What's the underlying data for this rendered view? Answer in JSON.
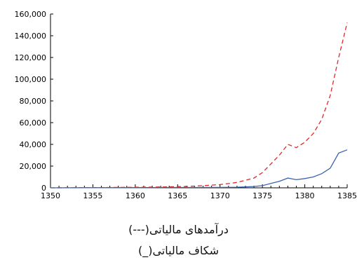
{
  "chart_data": {
    "type": "line",
    "title": "",
    "xlabel": "",
    "ylabel": "",
    "xlim": [
      1350,
      1385
    ],
    "ylim": [
      0,
      160000
    ],
    "x_ticks": [
      1350,
      1355,
      1360,
      1365,
      1370,
      1375,
      1380,
      1385
    ],
    "y_ticks": [
      0,
      20000,
      40000,
      60000,
      80000,
      100000,
      120000,
      140000,
      160000
    ],
    "y_tick_labels": [
      "0",
      "20,000",
      "40,000",
      "60,000",
      "80,000",
      "100,000",
      "120,000",
      "140,000",
      "160,000"
    ],
    "x_tick_labels": [
      "1350",
      "1355",
      "1360",
      "1365",
      "1370",
      "1375",
      "1380",
      "1385"
    ],
    "grid": false,
    "series": [
      {
        "name": "درآمدهای مالیاتی(---)",
        "style": "dashed",
        "color": "#e0282a",
        "x": [
          1350,
          1355,
          1360,
          1363,
          1366,
          1368,
          1370,
          1372,
          1374,
          1375,
          1376,
          1377,
          1378,
          1379,
          1380,
          1381,
          1382,
          1383,
          1384,
          1385
        ],
        "values": [
          0,
          200,
          500,
          800,
          1200,
          2000,
          3000,
          5000,
          9000,
          14000,
          22000,
          30000,
          40000,
          37000,
          42000,
          50000,
          63000,
          85000,
          120000,
          152000
        ]
      },
      {
        "name": "شکاف مالیاتی(_)",
        "style": "solid",
        "color": "#3a62b0",
        "x": [
          1350,
          1355,
          1360,
          1365,
          1370,
          1372,
          1374,
          1375,
          1376,
          1377,
          1378,
          1379,
          1380,
          1381,
          1382,
          1383,
          1384,
          1385
        ],
        "values": [
          0,
          100,
          200,
          300,
          400,
          600,
          1200,
          2000,
          4000,
          6000,
          9000,
          7500,
          8500,
          10000,
          13000,
          18000,
          32000,
          35000
        ]
      }
    ]
  },
  "legend": {
    "line1": "درآمدهای مالیاتی(---)",
    "line2": "شکاف مالیاتی(_)"
  }
}
